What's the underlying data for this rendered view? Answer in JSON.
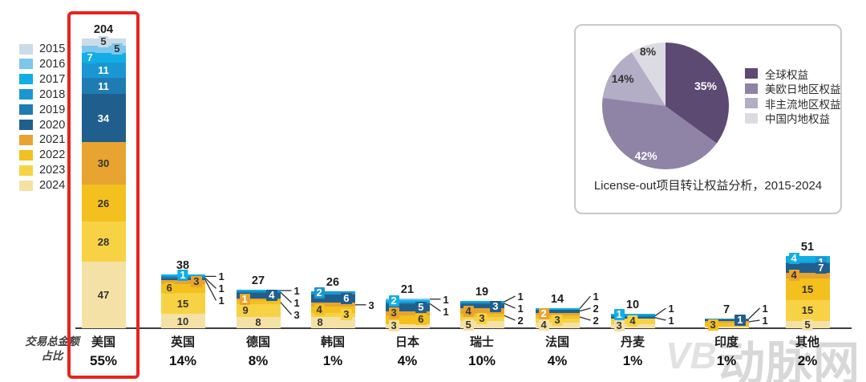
{
  "watermark": {
    "logo_text": "VB",
    "site_text": "动脉网"
  },
  "axis_caption_lines": [
    "交易总金额",
    "占比"
  ],
  "colors": {
    "highlight_box": "#e8231d",
    "baseline": "#3c3c3c",
    "inset_border": "#c9c9c9"
  },
  "chart_data": [
    {
      "type": "bar",
      "variant": "stacked",
      "title": "",
      "xlabel": "",
      "ylabel": "",
      "grid": false,
      "legend_position": "left",
      "legend": [
        {
          "label": "2015",
          "color": "#cbdce8"
        },
        {
          "label": "2016",
          "color": "#7cc7eb"
        },
        {
          "label": "2017",
          "color": "#12ade4"
        },
        {
          "label": "2018",
          "color": "#1a97d3"
        },
        {
          "label": "2019",
          "color": "#1f7cb2"
        },
        {
          "label": "2020",
          "color": "#205f8d"
        },
        {
          "label": "2021",
          "color": "#e7a430"
        },
        {
          "label": "2022",
          "color": "#f3c01e"
        },
        {
          "label": "2023",
          "color": "#f7d245"
        },
        {
          "label": "2024",
          "color": "#f4e1a6"
        }
      ],
      "categories": [
        "美国",
        "英国",
        "德国",
        "韩国",
        "日本",
        "瑞士",
        "法国",
        "丹麦",
        "印度",
        "其他"
      ],
      "totals": [
        204,
        38,
        27,
        26,
        21,
        19,
        14,
        10,
        7,
        51
      ],
      "share_pcts": [
        "55%",
        "14%",
        "8%",
        "1%",
        "4%",
        "10%",
        "4%",
        "1%",
        "1%",
        "2%"
      ],
      "share_caption": "交易总金额占比",
      "highlighted_category": "美国",
      "bars": [
        {
          "name": "美国",
          "total": 204,
          "pct": "55%",
          "highlighted": true,
          "segments": [
            {
              "year": "2015",
              "value": 5,
              "label": "in",
              "side": "c"
            },
            {
              "year": "2016",
              "value": 5,
              "label": "in",
              "side": "r"
            },
            {
              "year": "2017",
              "value": 7,
              "label": "inw",
              "side": "l"
            },
            {
              "year": "2018",
              "value": 11,
              "label": "inw",
              "side": "c"
            },
            {
              "year": "2019",
              "value": 11,
              "label": "inw",
              "side": "c"
            },
            {
              "year": "2020",
              "value": 34,
              "label": "inw",
              "side": "c"
            },
            {
              "year": "2021",
              "value": 30,
              "label": "in",
              "side": "c"
            },
            {
              "year": "2022",
              "value": 26,
              "label": "in",
              "side": "c"
            },
            {
              "year": "2023",
              "value": 28,
              "label": "in",
              "side": "c"
            },
            {
              "year": "2024",
              "value": 47,
              "label": "in",
              "side": "c"
            }
          ]
        },
        {
          "name": "英国",
          "total": 38,
          "pct": "14%",
          "highlighted": false,
          "segments": [
            {
              "year": "2017",
              "value": 1,
              "label": "inw",
              "side": "c"
            },
            {
              "year": "2018",
              "value": 1,
              "label": "out"
            },
            {
              "year": "2019",
              "value": 1,
              "label": "out"
            },
            {
              "year": "2020",
              "value": 1,
              "label": "out"
            },
            {
              "year": "2021",
              "value": 3,
              "label": "in",
              "side": "r"
            },
            {
              "year": "2022",
              "value": 6,
              "label": "in",
              "side": "l"
            },
            {
              "year": "2023",
              "value": 15,
              "label": "in",
              "side": "c"
            },
            {
              "year": "2024",
              "value": 10,
              "label": "in",
              "side": "c"
            }
          ]
        },
        {
          "name": "德国",
          "total": 27,
          "pct": "8%",
          "highlighted": false,
          "segments": [
            {
              "year": "2017",
              "value": 1,
              "label": "out"
            },
            {
              "year": "2019",
              "value": 1,
              "label": "out"
            },
            {
              "year": "2020",
              "value": 4,
              "label": "inw",
              "side": "r"
            },
            {
              "year": "2021",
              "value": 1,
              "label": "inw",
              "side": "l"
            },
            {
              "year": "2022",
              "value": 3,
              "label": "out"
            },
            {
              "year": "2023",
              "value": 9,
              "label": "in",
              "side": "l"
            },
            {
              "year": "2024",
              "value": 8,
              "label": "in",
              "side": "c"
            }
          ]
        },
        {
          "name": "韩国",
          "total": 26,
          "pct": "1%",
          "highlighted": false,
          "segments": [
            {
              "year": "2018",
              "value": 2,
              "label": "inw",
              "side": "l"
            },
            {
              "year": "2020",
              "value": 6,
              "label": "inw",
              "side": "r"
            },
            {
              "year": "2021",
              "value": 3,
              "label": "out"
            },
            {
              "year": "2022",
              "value": 4,
              "label": "in",
              "side": "l"
            },
            {
              "year": "2023",
              "value": 3,
              "label": "in",
              "side": "r"
            },
            {
              "year": "2024",
              "value": 8,
              "label": "in",
              "side": "l"
            }
          ]
        },
        {
          "name": "日本",
          "total": 21,
          "pct": "4%",
          "highlighted": false,
          "segments": [
            {
              "year": "2016",
              "value": 1,
              "label": "out"
            },
            {
              "year": "2017",
              "value": 2,
              "label": "inw",
              "side": "l"
            },
            {
              "year": "2019",
              "value": 1,
              "label": "out"
            },
            {
              "year": "2020",
              "value": 5,
              "label": "inw",
              "side": "r"
            },
            {
              "year": "2021",
              "value": 3,
              "label": "in",
              "side": "l"
            },
            {
              "year": "2022",
              "value": 6,
              "label": "in",
              "side": "r"
            },
            {
              "year": "2024",
              "value": 3,
              "label": "in",
              "side": "l"
            }
          ]
        },
        {
          "name": "瑞士",
          "total": 19,
          "pct": "10%",
          "highlighted": false,
          "segments": [
            {
              "year": "2017",
              "value": 1,
              "label": "out"
            },
            {
              "year": "2019",
              "value": 1,
              "label": "out"
            },
            {
              "year": "2020",
              "value": 3,
              "label": "inw",
              "side": "r"
            },
            {
              "year": "2021",
              "value": 4,
              "label": "in",
              "side": "l"
            },
            {
              "year": "2022",
              "value": 2,
              "label": "out"
            },
            {
              "year": "2023",
              "value": 3,
              "label": "in",
              "side": "c"
            },
            {
              "year": "2024",
              "value": 5,
              "label": "in",
              "side": "l"
            }
          ]
        },
        {
          "name": "法国",
          "total": 14,
          "pct": "4%",
          "highlighted": false,
          "segments": [
            {
              "year": "2017",
              "value": 1,
              "label": "out"
            },
            {
              "year": "2020",
              "value": 2,
              "label": "out"
            },
            {
              "year": "2021",
              "value": 2,
              "label": "inw",
              "side": "l"
            },
            {
              "year": "2022",
              "value": 2,
              "label": "out"
            },
            {
              "year": "2023",
              "value": 3,
              "label": "in",
              "side": "c"
            },
            {
              "year": "2024",
              "value": 4,
              "label": "in",
              "side": "l"
            }
          ]
        },
        {
          "name": "丹麦",
          "total": 10,
          "pct": "1%",
          "highlighted": false,
          "segments": [
            {
              "year": "2017",
              "value": 1,
              "label": "inw",
              "side": "l"
            },
            {
              "year": "2019",
              "value": 1,
              "label": "out"
            },
            {
              "year": "2020",
              "value": 1,
              "label": "out"
            },
            {
              "year": "2023",
              "value": 4,
              "label": "in",
              "side": "c"
            },
            {
              "year": "2024",
              "value": 3,
              "label": "in",
              "side": "l"
            }
          ]
        },
        {
          "name": "印度",
          "total": 7,
          "pct": "1%",
          "highlighted": false,
          "segments": [
            {
              "year": "2018",
              "value": 1,
              "label": "out"
            },
            {
              "year": "2020",
              "value": 1,
              "label": "inw",
              "side": "r"
            },
            {
              "year": "2021",
              "value": 1,
              "label": "out"
            },
            {
              "year": "2022",
              "value": 3,
              "label": "in",
              "side": "l"
            },
            {
              "year": "2024",
              "value": 1,
              "label": "none"
            }
          ]
        },
        {
          "name": "其他",
          "total": 51,
          "pct": "2%",
          "highlighted": false,
          "segments": [
            {
              "year": "2017",
              "value": 4,
              "label": "inw",
              "side": "l"
            },
            {
              "year": "2018",
              "value": 1,
              "label": "inw",
              "side": "r"
            },
            {
              "year": "2020",
              "value": 7,
              "label": "inw",
              "side": "r"
            },
            {
              "year": "2021",
              "value": 4,
              "label": "in",
              "side": "l"
            },
            {
              "year": "2022",
              "value": 15,
              "label": "in",
              "side": "c"
            },
            {
              "year": "2023",
              "value": 15,
              "label": "in",
              "side": "c"
            },
            {
              "year": "2024",
              "value": 5,
              "label": "in",
              "side": "c"
            }
          ]
        }
      ]
    },
    {
      "type": "pie",
      "title": "License-out项目转让权益分析，2015-2024",
      "legend_position": "right",
      "start_angle_deg": 0,
      "direction": "clockwise",
      "slices": [
        {
          "label": "全球权益",
          "value": 35,
          "pct_label": "35%",
          "color": "#5d4a73",
          "text_color": "#ffffff"
        },
        {
          "label": "美欧日地区权益",
          "value": 42,
          "pct_label": "42%",
          "color": "#8f83a6",
          "text_color": "#ffffff"
        },
        {
          "label": "非主流地区权益",
          "value": 14,
          "pct_label": "14%",
          "color": "#b3adc6",
          "text_color": "#333333"
        },
        {
          "label": "中国内地权益",
          "value": 8,
          "pct_label": "8%",
          "color": "#dcdbe3",
          "text_color": "#333333"
        }
      ]
    }
  ]
}
